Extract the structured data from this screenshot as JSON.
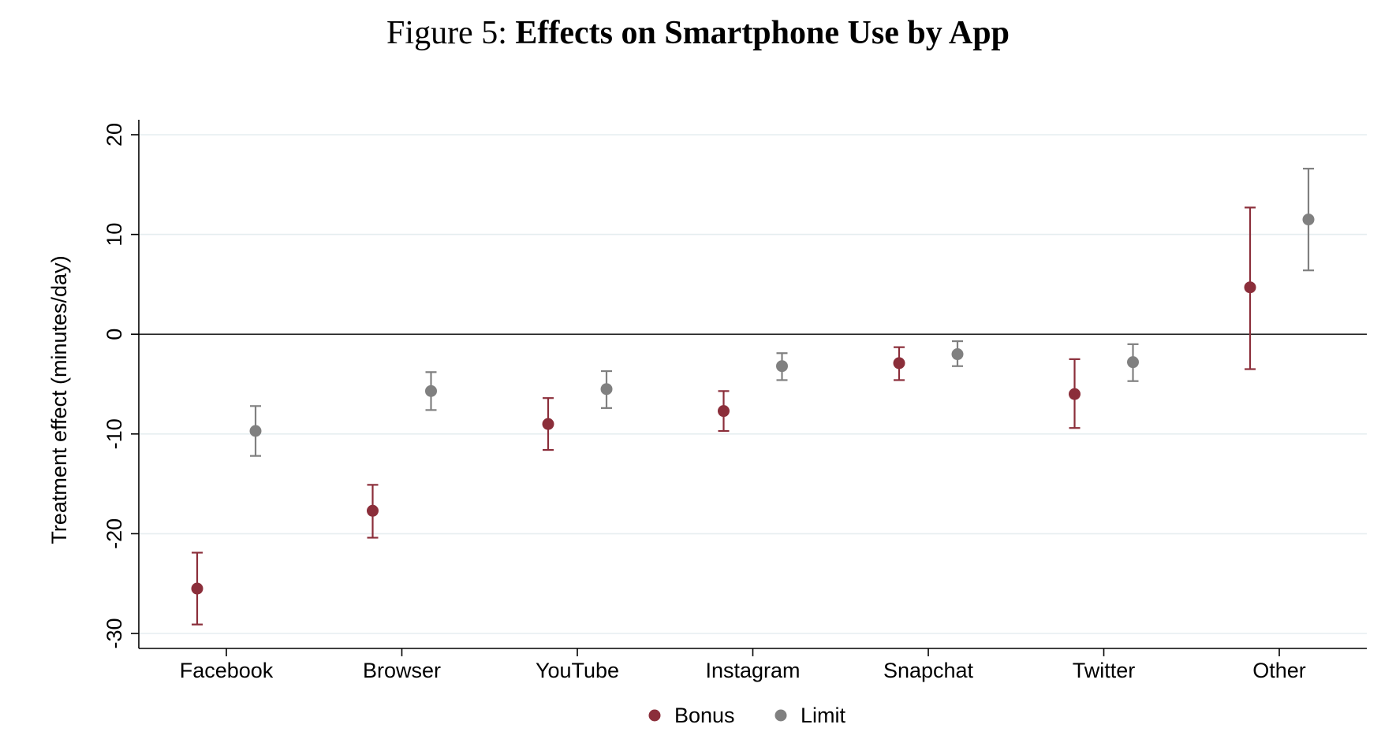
{
  "figure": {
    "prefix": "Figure 5:",
    "title": "Effects on Smartphone Use by App"
  },
  "chart_data": {
    "type": "scatter",
    "title": "Figure 5: Effects on Smartphone Use by App",
    "xlabel": "",
    "ylabel": "Treatment effect (minutes/day)",
    "categories": [
      "Facebook",
      "Browser",
      "YouTube",
      "Instagram",
      "Snapchat",
      "Twitter",
      "Other"
    ],
    "ylim": [
      -31.5,
      21.5
    ],
    "yticks": [
      -30,
      -20,
      -10,
      0,
      10,
      20
    ],
    "grid": true,
    "reference_line": 0,
    "legend_position": "bottom",
    "series": [
      {
        "name": "Bonus",
        "color": "#8b2e3a",
        "values": [
          -25.5,
          -17.7,
          -9.0,
          -7.7,
          -2.9,
          -6.0,
          4.7
        ],
        "ci_low": [
          -29.1,
          -20.4,
          -11.6,
          -9.7,
          -4.6,
          -9.4,
          -3.5
        ],
        "ci_high": [
          -21.9,
          -15.1,
          -6.4,
          -5.7,
          -1.3,
          -2.5,
          12.7
        ]
      },
      {
        "name": "Limit",
        "color": "#808080",
        "values": [
          -9.7,
          -5.7,
          -5.5,
          -3.2,
          -2.0,
          -2.8,
          11.5
        ],
        "ci_low": [
          -12.2,
          -7.6,
          -7.4,
          -4.6,
          -3.2,
          -4.7,
          6.4
        ],
        "ci_high": [
          -7.2,
          -3.8,
          -3.7,
          -1.9,
          -0.7,
          -1.0,
          16.6
        ]
      }
    ]
  }
}
